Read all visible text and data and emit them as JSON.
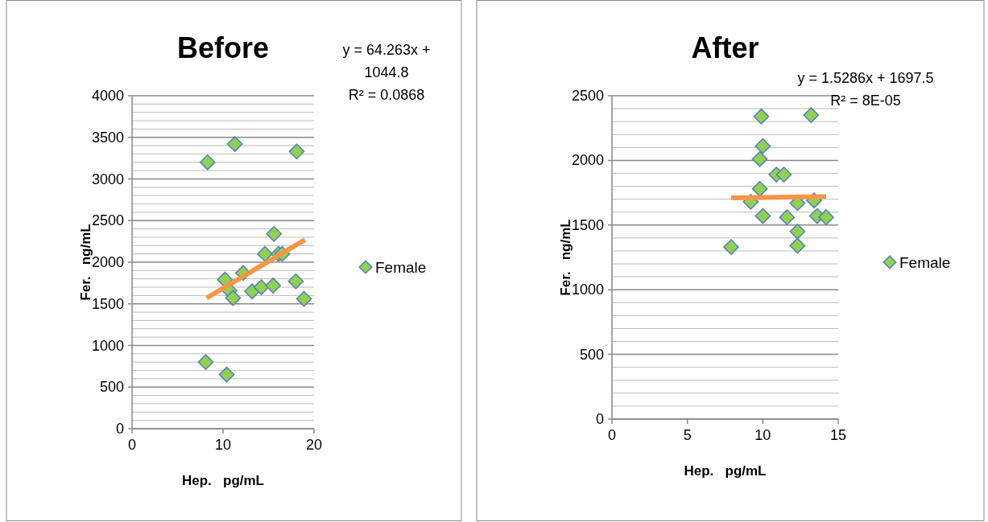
{
  "chart_data": [
    {
      "type": "scatter",
      "title": "Before",
      "xlabel": "Hep.   pg/mL",
      "ylabel": "Fer.   ng/mL",
      "xlim": [
        0,
        20
      ],
      "xticks": [
        0,
        10,
        20
      ],
      "ylim": [
        0,
        4000
      ],
      "yticks": [
        0,
        500,
        1000,
        1500,
        2000,
        2500,
        3000,
        3500,
        4000
      ],
      "grid": "y",
      "legend": "right",
      "annotations": [
        "y = 64.263x + 1044.8",
        "R² = 0.0868"
      ],
      "series": [
        {
          "name": "Female",
          "color": "#92d050",
          "marker": "diamond",
          "x": [
            8.3,
            11.3,
            18.1,
            8.1,
            10.4,
            10.2,
            10.7,
            11.1,
            12.2,
            13.2,
            14.2,
            14.6,
            15.5,
            15.6,
            16.1,
            16.5,
            18.0,
            18.9
          ],
          "values": [
            3200,
            3420,
            3330,
            800,
            650,
            1790,
            1660,
            1570,
            1870,
            1650,
            1700,
            2100,
            1720,
            2340,
            2100,
            2100,
            1770,
            1560
          ]
        },
        {
          "type": "line",
          "color": "#f79646",
          "marker": "none",
          "x": [
            8.2,
            19
          ],
          "values": [
            1570,
            2270
          ]
        }
      ]
    },
    {
      "type": "scatter",
      "title": "After",
      "xlabel": "Hep.   pg/mL",
      "ylabel": "Fer.   ng/mL",
      "xlim": [
        0,
        15
      ],
      "xticks": [
        0,
        5,
        10,
        15
      ],
      "ylim": [
        0,
        2500
      ],
      "yticks": [
        0,
        500,
        1000,
        1500,
        2000,
        2500
      ],
      "grid": "y",
      "legend": "right",
      "annotations": [
        "y = 1.5286x + 1697.5",
        "R² = 8E-05"
      ],
      "series": [
        {
          "name": "Female",
          "color": "#92d050",
          "marker": "diamond",
          "x": [
            7.9,
            9.9,
            13.2,
            10.0,
            9.8,
            10.9,
            11.4,
            9.8,
            9.2,
            12.3,
            13.4,
            10.0,
            11.6,
            13.6,
            14.2,
            12.3,
            12.3
          ],
          "values": [
            1330,
            2340,
            2350,
            2110,
            2010,
            1890,
            1890,
            1780,
            1680,
            1670,
            1690,
            1570,
            1560,
            1570,
            1560,
            1450,
            1340
          ]
        },
        {
          "type": "line",
          "color": "#f79646",
          "marker": "none",
          "x": [
            7.9,
            14.2
          ],
          "values": [
            1710,
            1720
          ]
        }
      ]
    }
  ]
}
